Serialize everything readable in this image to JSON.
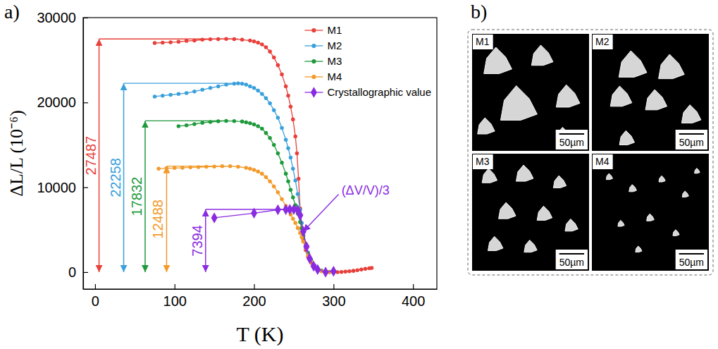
{
  "chart_data": {
    "type": "line",
    "panel_label": "a)",
    "x_label": "T (K)",
    "y_label": "ΔL/L (10⁻⁶)",
    "xlim": [
      -15,
      430
    ],
    "ylim": [
      -2000,
      30000
    ],
    "xticks": [
      0,
      100,
      200,
      300,
      400
    ],
    "yticks": [
      0,
      10000,
      20000,
      30000
    ],
    "grid": false,
    "legend": "upper right",
    "series": [
      {
        "name": "M1",
        "color": "#e8403a",
        "marker": "circle",
        "line_style": "solid",
        "x": [
          75,
          85,
          95,
          105,
          115,
          125,
          135,
          145,
          155,
          165,
          175,
          185,
          195,
          200,
          205,
          210,
          215,
          220,
          225,
          230,
          235,
          240,
          243,
          246,
          249,
          252,
          254,
          256,
          258,
          260,
          262,
          265,
          268,
          272,
          276,
          280,
          285,
          290,
          295,
          300,
          305,
          310,
          315,
          320,
          325,
          330,
          335,
          340,
          345,
          348
        ],
        "values": [
          27000,
          27050,
          27100,
          27150,
          27250,
          27300,
          27400,
          27450,
          27470,
          27487,
          27470,
          27400,
          27300,
          27200,
          27050,
          26850,
          26500,
          26000,
          25300,
          24400,
          23300,
          21900,
          20800,
          19500,
          18000,
          16000,
          14000,
          11000,
          7500,
          5200,
          3800,
          2600,
          1800,
          1100,
          600,
          300,
          150,
          80,
          30,
          0,
          0,
          20,
          60,
          100,
          150,
          220,
          300,
          380,
          450,
          500
        ]
      },
      {
        "name": "M2",
        "color": "#3aa0dc",
        "marker": "circle",
        "line_style": "solid",
        "x": [
          75,
          85,
          95,
          105,
          115,
          125,
          135,
          145,
          155,
          165,
          175,
          180,
          185,
          190,
          195,
          200,
          205,
          210,
          215,
          220,
          225,
          230,
          235,
          240,
          243,
          246,
          249,
          252,
          255,
          258,
          260,
          262,
          265,
          268,
          272,
          276,
          280,
          285,
          290,
          295,
          300
        ],
        "values": [
          20700,
          20800,
          20900,
          21000,
          21100,
          21300,
          21500,
          21700,
          21900,
          22100,
          22200,
          22258,
          22200,
          22100,
          21900,
          21700,
          21400,
          21000,
          20500,
          19900,
          19100,
          18200,
          17000,
          15600,
          14600,
          13500,
          12200,
          10800,
          9200,
          7300,
          5800,
          4600,
          3300,
          2300,
          1400,
          800,
          400,
          150,
          50,
          10,
          0
        ]
      },
      {
        "name": "M3",
        "color": "#1e9a3c",
        "marker": "circle",
        "line_style": "solid",
        "x": [
          105,
          115,
          125,
          135,
          145,
          155,
          165,
          175,
          185,
          190,
          195,
          200,
          205,
          210,
          215,
          220,
          225,
          230,
          235,
          240,
          243,
          246,
          249,
          252,
          255,
          258,
          260,
          262,
          265,
          268,
          272,
          276,
          280,
          285,
          290,
          295,
          300
        ],
        "values": [
          17200,
          17300,
          17450,
          17600,
          17700,
          17780,
          17832,
          17800,
          17750,
          17650,
          17550,
          17400,
          17200,
          16900,
          16400,
          15800,
          15000,
          14000,
          12900,
          11600,
          10700,
          9700,
          8800,
          7900,
          6900,
          5900,
          5100,
          4300,
          3200,
          2200,
          1300,
          700,
          350,
          150,
          50,
          10,
          0
        ]
      },
      {
        "name": "M4",
        "color": "#f39a2b",
        "marker": "circle",
        "line_style": "solid",
        "x": [
          80,
          90,
          100,
          110,
          120,
          130,
          140,
          150,
          160,
          170,
          180,
          190,
          195,
          200,
          205,
          210,
          215,
          220,
          225,
          230,
          235,
          240,
          243,
          246,
          249,
          252,
          255,
          258,
          260,
          262,
          265,
          268,
          272,
          276,
          280,
          285,
          290,
          295,
          300
        ],
        "values": [
          12200,
          12250,
          12270,
          12300,
          12350,
          12380,
          12420,
          12450,
          12480,
          12488,
          12420,
          12300,
          12200,
          12050,
          11850,
          11600,
          11200,
          10700,
          10100,
          9400,
          8600,
          7800,
          7300,
          6800,
          6300,
          5800,
          5200,
          4600,
          4100,
          3600,
          2800,
          2000,
          1200,
          600,
          300,
          100,
          30,
          0,
          0
        ]
      },
      {
        "name": "Crystallographic value",
        "color": "#8a2be2",
        "marker": "diamond",
        "line_style": "solid",
        "x": [
          150,
          200,
          230,
          240,
          245,
          250,
          255,
          258,
          262,
          266,
          270,
          275,
          280,
          290,
          300
        ],
        "values": [
          6400,
          6950,
          7350,
          7380,
          7394,
          7394,
          7300,
          6700,
          4800,
          3000,
          1600,
          700,
          300,
          0,
          100
        ]
      }
    ],
    "annotations": [
      {
        "value": 27487,
        "x": 5,
        "x_end": 180,
        "color": "#e8403a"
      },
      {
        "value": 22258,
        "x": 36,
        "x_end": 175,
        "color": "#3aa0dc"
      },
      {
        "value": 17832,
        "x": 63,
        "x_end": 162,
        "color": "#1e9a3c"
      },
      {
        "value": 12488,
        "x": 90,
        "x_end": 165,
        "color": "#f39a2b"
      },
      {
        "value": 7394,
        "x": 139,
        "x_end": 258,
        "color": "#8a2be2"
      }
    ],
    "notes": [
      {
        "text": "(ΔV/V)/3",
        "x": 310,
        "y": 9700,
        "arrow_to": [
          262,
          4800
        ],
        "color": "#8a2be2"
      }
    ]
  },
  "panel_b": {
    "label": "b)",
    "images": [
      {
        "label": "M1",
        "scale_bar": "50µm"
      },
      {
        "label": "M2",
        "scale_bar": "50µm"
      },
      {
        "label": "M3",
        "scale_bar": "50µm"
      },
      {
        "label": "M4",
        "scale_bar": "50µm"
      }
    ]
  }
}
